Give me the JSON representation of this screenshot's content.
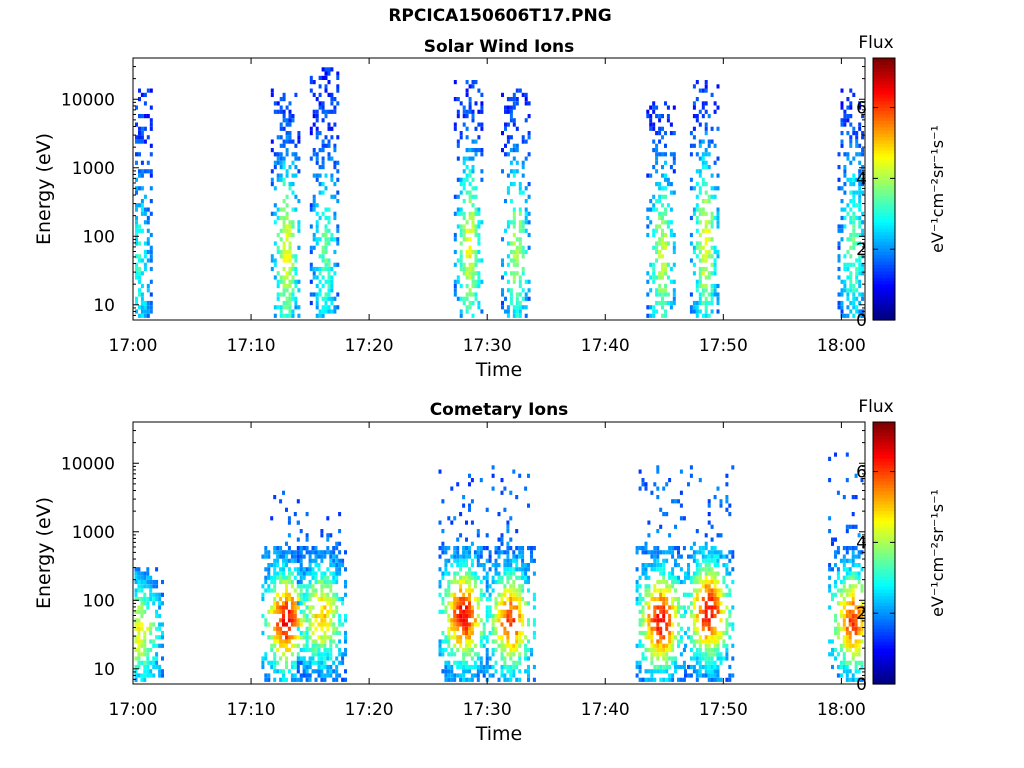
{
  "figure": {
    "filename_title": "RPCICA150606T17.PNG"
  },
  "chart_data": [
    {
      "type": "heatmap",
      "title": "Solar Wind Ions",
      "xlabel": "Time",
      "ylabel": "Energy (eV)",
      "x_tick_labels": [
        "17:00",
        "17:10",
        "17:20",
        "17:30",
        "17:40",
        "17:50",
        "18:00"
      ],
      "x_range": [
        "17:00",
        "18:02"
      ],
      "y_scale": "log",
      "y_range": [
        6,
        40000
      ],
      "y_tick_labels": [
        "10",
        "100",
        "1000",
        "10000"
      ],
      "colorbar": {
        "title": "Flux",
        "label": "eV⁻¹cm⁻²sr⁻¹s⁻¹",
        "range": [
          0,
          7.4
        ],
        "tick_labels": [
          "0",
          "2",
          "4",
          "6"
        ],
        "colormap": "jet"
      },
      "grid": false,
      "bursts": [
        {
          "time": "17:00.5",
          "emax": 15000,
          "peak_energy": 40,
          "peak_flux": 3.0
        },
        {
          "time": "17:13",
          "emax": 15000,
          "peak_energy": 60,
          "peak_flux": 4.5
        },
        {
          "time": "17:16.3",
          "emax": 30000,
          "peak_energy": 60,
          "peak_flux": 3.5
        },
        {
          "time": "17:28.5",
          "emax": 20000,
          "peak_energy": 70,
          "peak_flux": 4.5
        },
        {
          "time": "17:32.5",
          "emax": 15000,
          "peak_energy": 60,
          "peak_flux": 4.0
        },
        {
          "time": "17:44.8",
          "emax": 10000,
          "peak_energy": 50,
          "peak_flux": 4.2
        },
        {
          "time": "17:48.5",
          "emax": 20000,
          "peak_energy": 80,
          "peak_flux": 4.5
        },
        {
          "time": "18:01",
          "emax": 15000,
          "peak_energy": 70,
          "peak_flux": 3.5
        }
      ]
    },
    {
      "type": "heatmap",
      "title": "Cometary Ions",
      "xlabel": "Time",
      "ylabel": "Energy (eV)",
      "x_tick_labels": [
        "17:00",
        "17:10",
        "17:20",
        "17:30",
        "17:40",
        "17:50",
        "18:00"
      ],
      "x_range": [
        "17:00",
        "18:02"
      ],
      "y_scale": "log",
      "y_range": [
        6,
        40000
      ],
      "y_tick_labels": [
        "10",
        "100",
        "1000",
        "10000"
      ],
      "colorbar": {
        "title": "Flux",
        "label": "eV⁻¹cm⁻²sr⁻¹s⁻¹",
        "range": [
          0,
          7.4
        ],
        "tick_labels": [
          "0",
          "2",
          "4",
          "6"
        ],
        "colormap": "jet"
      },
      "grid": false,
      "bursts": [
        {
          "time": "17:00.5",
          "emax": 300,
          "peak_energy": 35,
          "peak_flux": 4.5
        },
        {
          "time": "17:13",
          "emax": 4000,
          "peak_energy": 50,
          "peak_flux": 6.5
        },
        {
          "time": "17:16",
          "emax": 2000,
          "peak_energy": 60,
          "peak_flux": 5.0
        },
        {
          "time": "17:28",
          "emax": 10000,
          "peak_energy": 60,
          "peak_flux": 6.5
        },
        {
          "time": "17:32",
          "emax": 10000,
          "peak_energy": 50,
          "peak_flux": 6.0
        },
        {
          "time": "17:44.7",
          "emax": 10000,
          "peak_energy": 50,
          "peak_flux": 6.5
        },
        {
          "time": "17:48.8",
          "emax": 10000,
          "peak_energy": 70,
          "peak_flux": 6.5
        },
        {
          "time": "18:01",
          "emax": 15000,
          "peak_energy": 50,
          "peak_flux": 6.0
        }
      ]
    }
  ]
}
